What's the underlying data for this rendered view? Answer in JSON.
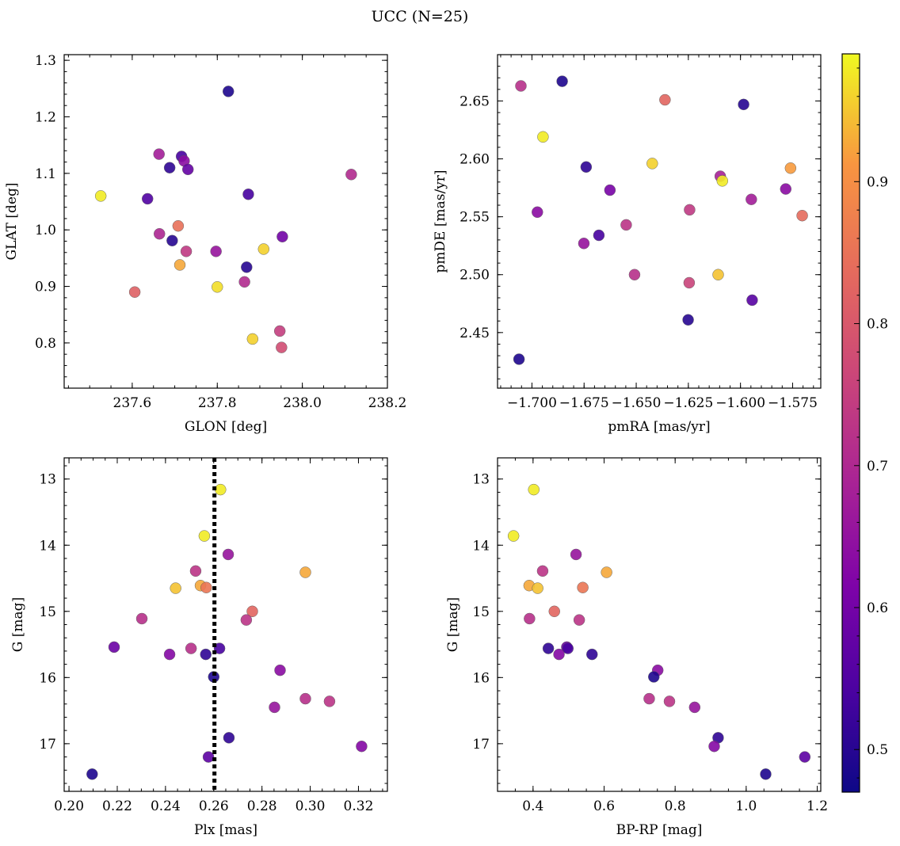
{
  "title": "UCC (N=25)",
  "colorscale": {
    "name": "plasma",
    "range": [
      0.47,
      0.99
    ],
    "ticks": [
      0.5,
      0.6,
      0.7,
      0.8,
      0.9
    ],
    "tick_labels": [
      "0.5",
      "0.6",
      "0.7",
      "0.8",
      "0.9"
    ]
  },
  "chart_data": [
    {
      "type": "scatter",
      "xlabel": "GLON [deg]",
      "ylabel": "GLAT [deg]",
      "xlim": [
        237.44,
        238.2
      ],
      "ylim": [
        0.72,
        1.31
      ],
      "xticks": [
        237.6,
        237.8,
        238.0,
        238.2
      ],
      "xtick_labels": [
        "237.6",
        "237.8",
        "238.0",
        "238.2"
      ],
      "yticks": [
        0.8,
        0.9,
        1.0,
        1.1,
        1.2,
        1.3
      ],
      "ytick_labels": [
        "0.8",
        "0.9",
        "1.0",
        "1.1",
        "1.2",
        "1.3"
      ],
      "points": [
        {
          "x": 237.826,
          "y": 1.245,
          "c": 0.49
        },
        {
          "x": 237.663,
          "y": 1.134,
          "c": 0.68
        },
        {
          "x": 237.716,
          "y": 1.13,
          "c": 0.54
        },
        {
          "x": 237.722,
          "y": 1.122,
          "c": 0.64
        },
        {
          "x": 237.688,
          "y": 1.11,
          "c": 0.51
        },
        {
          "x": 237.731,
          "y": 1.107,
          "c": 0.58
        },
        {
          "x": 238.115,
          "y": 1.098,
          "c": 0.71
        },
        {
          "x": 237.526,
          "y": 1.06,
          "c": 0.98
        },
        {
          "x": 237.873,
          "y": 1.063,
          "c": 0.54
        },
        {
          "x": 237.636,
          "y": 1.055,
          "c": 0.55
        },
        {
          "x": 237.708,
          "y": 1.007,
          "c": 0.85
        },
        {
          "x": 237.664,
          "y": 0.993,
          "c": 0.7
        },
        {
          "x": 237.953,
          "y": 0.988,
          "c": 0.6
        },
        {
          "x": 237.694,
          "y": 0.981,
          "c": 0.5
        },
        {
          "x": 237.909,
          "y": 0.966,
          "c": 0.96
        },
        {
          "x": 237.727,
          "y": 0.962,
          "c": 0.74
        },
        {
          "x": 237.797,
          "y": 0.962,
          "c": 0.66
        },
        {
          "x": 237.712,
          "y": 0.938,
          "c": 0.93
        },
        {
          "x": 237.869,
          "y": 0.934,
          "c": 0.5
        },
        {
          "x": 237.864,
          "y": 0.908,
          "c": 0.71
        },
        {
          "x": 237.8,
          "y": 0.899,
          "c": 0.97
        },
        {
          "x": 237.606,
          "y": 0.89,
          "c": 0.82
        },
        {
          "x": 237.947,
          "y": 0.821,
          "c": 0.75
        },
        {
          "x": 237.883,
          "y": 0.807,
          "c": 0.96
        },
        {
          "x": 237.951,
          "y": 0.792,
          "c": 0.78
        }
      ]
    },
    {
      "type": "scatter",
      "xlabel": "pmRA [mas/yr]",
      "ylabel": "pmDE [mas/yr]",
      "xlim": [
        -1.7165,
        -1.5615
      ],
      "ylim": [
        2.402,
        2.69
      ],
      "xticks": [
        -1.7,
        -1.675,
        -1.65,
        -1.625,
        -1.6,
        -1.575
      ],
      "xtick_labels": [
        "−1.700",
        "−1.675",
        "−1.650",
        "−1.625",
        "−1.600",
        "−1.575"
      ],
      "yticks": [
        2.45,
        2.5,
        2.55,
        2.6,
        2.65
      ],
      "ytick_labels": [
        "2.45",
        "2.50",
        "2.55",
        "2.60",
        "2.65"
      ],
      "points": [
        {
          "x": -1.6855,
          "y": 2.667,
          "c": 0.49
        },
        {
          "x": -1.7053,
          "y": 2.663,
          "c": 0.72
        },
        {
          "x": -1.6362,
          "y": 2.651,
          "c": 0.83
        },
        {
          "x": -1.5985,
          "y": 2.647,
          "c": 0.5
        },
        {
          "x": -1.6947,
          "y": 2.619,
          "c": 0.98
        },
        {
          "x": -1.6423,
          "y": 2.596,
          "c": 0.96
        },
        {
          "x": -1.674,
          "y": 2.593,
          "c": 0.51
        },
        {
          "x": -1.576,
          "y": 2.592,
          "c": 0.92
        },
        {
          "x": -1.6097,
          "y": 2.585,
          "c": 0.69
        },
        {
          "x": -1.6087,
          "y": 2.581,
          "c": 0.98
        },
        {
          "x": -1.5783,
          "y": 2.574,
          "c": 0.64
        },
        {
          "x": -1.6626,
          "y": 2.573,
          "c": 0.61
        },
        {
          "x": -1.5948,
          "y": 2.565,
          "c": 0.68
        },
        {
          "x": -1.5704,
          "y": 2.551,
          "c": 0.84
        },
        {
          "x": -1.6244,
          "y": 2.556,
          "c": 0.74
        },
        {
          "x": -1.6974,
          "y": 2.554,
          "c": 0.64
        },
        {
          "x": -1.6548,
          "y": 2.543,
          "c": 0.73
        },
        {
          "x": -1.6679,
          "y": 2.534,
          "c": 0.54
        },
        {
          "x": -1.6751,
          "y": 2.527,
          "c": 0.66
        },
        {
          "x": -1.6107,
          "y": 2.5,
          "c": 0.95
        },
        {
          "x": -1.6508,
          "y": 2.5,
          "c": 0.72
        },
        {
          "x": -1.6246,
          "y": 2.493,
          "c": 0.76
        },
        {
          "x": -1.5944,
          "y": 2.478,
          "c": 0.56
        },
        {
          "x": -1.6251,
          "y": 2.461,
          "c": 0.5
        },
        {
          "x": -1.7062,
          "y": 2.427,
          "c": 0.49
        }
      ]
    },
    {
      "type": "scatter",
      "xlabel": "Plx [mas]",
      "ylabel": "G [mag]",
      "xlim": [
        0.198,
        0.332
      ],
      "ylim": [
        17.72,
        12.68
      ],
      "xticks": [
        0.2,
        0.22,
        0.24,
        0.26,
        0.28,
        0.3,
        0.32
      ],
      "xtick_labels": [
        "0.20",
        "0.22",
        "0.24",
        "0.26",
        "0.28",
        "0.30",
        "0.32"
      ],
      "yticks": [
        13,
        14,
        15,
        16,
        17
      ],
      "ytick_labels": [
        "13",
        "14",
        "15",
        "16",
        "17"
      ],
      "vline": {
        "x": 0.2603,
        "style": "dotted"
      },
      "points": [
        {
          "x": 0.2628,
          "y": 13.16,
          "c": 0.98
        },
        {
          "x": 0.2561,
          "y": 13.86,
          "c": 0.98
        },
        {
          "x": 0.266,
          "y": 14.14,
          "c": 0.66
        },
        {
          "x": 0.2525,
          "y": 14.39,
          "c": 0.73
        },
        {
          "x": 0.298,
          "y": 14.41,
          "c": 0.93
        },
        {
          "x": 0.2545,
          "y": 14.61,
          "c": 0.93
        },
        {
          "x": 0.2569,
          "y": 14.64,
          "c": 0.86
        },
        {
          "x": 0.2442,
          "y": 14.65,
          "c": 0.95
        },
        {
          "x": 0.276,
          "y": 15.0,
          "c": 0.83
        },
        {
          "x": 0.2302,
          "y": 15.11,
          "c": 0.72
        },
        {
          "x": 0.2735,
          "y": 15.13,
          "c": 0.73
        },
        {
          "x": 0.2187,
          "y": 15.54,
          "c": 0.59
        },
        {
          "x": 0.2506,
          "y": 15.56,
          "c": 0.72
        },
        {
          "x": 0.2624,
          "y": 15.56,
          "c": 0.54
        },
        {
          "x": 0.2417,
          "y": 15.65,
          "c": 0.63
        },
        {
          "x": 0.2567,
          "y": 15.65,
          "c": 0.51
        },
        {
          "x": 0.2875,
          "y": 15.89,
          "c": 0.64
        },
        {
          "x": 0.26,
          "y": 15.99,
          "c": 0.49
        },
        {
          "x": 0.298,
          "y": 16.32,
          "c": 0.72
        },
        {
          "x": 0.308,
          "y": 16.36,
          "c": 0.73
        },
        {
          "x": 0.2852,
          "y": 16.45,
          "c": 0.66
        },
        {
          "x": 0.2663,
          "y": 16.91,
          "c": 0.51
        },
        {
          "x": 0.3213,
          "y": 17.04,
          "c": 0.63
        },
        {
          "x": 0.2578,
          "y": 17.2,
          "c": 0.57
        },
        {
          "x": 0.2096,
          "y": 17.46,
          "c": 0.49
        }
      ]
    },
    {
      "type": "scatter",
      "xlabel": "BP-RP [mag]",
      "ylabel": "G [mag]",
      "xlim": [
        0.3,
        1.21
      ],
      "ylim": [
        17.72,
        12.68
      ],
      "xticks": [
        0.4,
        0.6,
        0.8,
        1.0,
        1.2
      ],
      "xtick_labels": [
        "0.4",
        "0.6",
        "0.8",
        "1.0",
        "1.2"
      ],
      "yticks": [
        13,
        14,
        15,
        16,
        17
      ],
      "ytick_labels": [
        "13",
        "14",
        "15",
        "16",
        "17"
      ],
      "points": [
        {
          "x": 0.402,
          "y": 13.16,
          "c": 0.98
        },
        {
          "x": 0.345,
          "y": 13.86,
          "c": 0.98
        },
        {
          "x": 0.521,
          "y": 14.14,
          "c": 0.66
        },
        {
          "x": 0.427,
          "y": 14.39,
          "c": 0.73
        },
        {
          "x": 0.607,
          "y": 14.41,
          "c": 0.93
        },
        {
          "x": 0.389,
          "y": 14.61,
          "c": 0.93
        },
        {
          "x": 0.54,
          "y": 14.64,
          "c": 0.86
        },
        {
          "x": 0.413,
          "y": 14.65,
          "c": 0.95
        },
        {
          "x": 0.46,
          "y": 15.0,
          "c": 0.83
        },
        {
          "x": 0.39,
          "y": 15.11,
          "c": 0.72
        },
        {
          "x": 0.53,
          "y": 15.13,
          "c": 0.73
        },
        {
          "x": 0.443,
          "y": 15.56,
          "c": 0.51
        },
        {
          "x": 0.495,
          "y": 15.54,
          "c": 0.59
        },
        {
          "x": 0.498,
          "y": 15.56,
          "c": 0.54
        },
        {
          "x": 0.473,
          "y": 15.65,
          "c": 0.63
        },
        {
          "x": 0.566,
          "y": 15.65,
          "c": 0.51
        },
        {
          "x": 0.751,
          "y": 15.89,
          "c": 0.64
        },
        {
          "x": 0.74,
          "y": 15.99,
          "c": 0.49
        },
        {
          "x": 0.727,
          "y": 16.32,
          "c": 0.72
        },
        {
          "x": 0.784,
          "y": 16.36,
          "c": 0.73
        },
        {
          "x": 0.855,
          "y": 16.45,
          "c": 0.66
        },
        {
          "x": 0.921,
          "y": 16.91,
          "c": 0.51
        },
        {
          "x": 0.91,
          "y": 17.04,
          "c": 0.63
        },
        {
          "x": 1.165,
          "y": 17.2,
          "c": 0.57
        },
        {
          "x": 1.055,
          "y": 17.46,
          "c": 0.49
        }
      ]
    }
  ]
}
